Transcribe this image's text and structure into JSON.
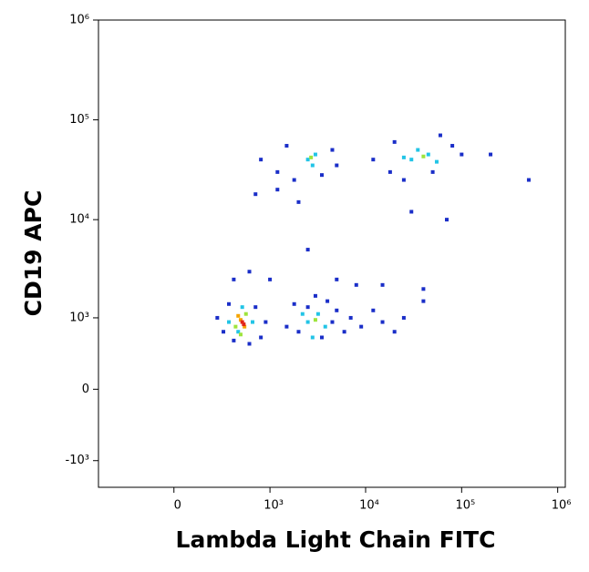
{
  "chart_data": {
    "type": "scatter",
    "x_label": "Lambda Light Chain FITC",
    "y_label": "CD19 APC",
    "scale": "biexponential",
    "xlim": [
      -600,
      1200000
    ],
    "ylim": [
      -1900,
      1000000
    ],
    "xticks": [
      0,
      {
        "value": 1000,
        "label": "10³"
      },
      {
        "value": 10000,
        "label": "10⁴"
      },
      {
        "value": 100000,
        "label": "10⁵"
      },
      {
        "value": 1000000,
        "label": "10⁶"
      }
    ],
    "yticks": [
      {
        "value": -1000,
        "label": "-10³"
      },
      0,
      {
        "value": 1000,
        "label": "10³"
      },
      {
        "value": 10000,
        "label": "10⁴"
      },
      {
        "value": 100000,
        "label": "10⁵"
      },
      {
        "value": 1000000,
        "label": "10⁶"
      }
    ],
    "series": [
      {
        "color": "#1a2ec8",
        "x": [
          300,
          250,
          350,
          700,
          800,
          600,
          400,
          900,
          1500,
          2000,
          2500,
          3500,
          4500,
          5000,
          6000,
          7000,
          1800,
          3000,
          4000,
          9000,
          15000,
          20000,
          25000,
          12000,
          1200,
          1800,
          3500,
          4500,
          800,
          1500,
          5000,
          12000,
          18000,
          25000,
          50000,
          80000,
          100000,
          60000,
          20000,
          200000,
          500000,
          1200,
          2000,
          700,
          30000,
          70000,
          2500,
          400,
          600,
          1000,
          5000,
          8000,
          15000,
          40000,
          40000
        ],
        "y": [
          700,
          1000,
          1400,
          1300,
          600,
          500,
          550,
          900,
          800,
          700,
          1300,
          600,
          900,
          1200,
          700,
          1000,
          1400,
          1700,
          1500,
          800,
          900,
          700,
          1000,
          1200,
          30000,
          25000,
          28000,
          50000,
          40000,
          55000,
          35000,
          40000,
          30000,
          25000,
          30000,
          55000,
          45000,
          70000,
          60000,
          45000,
          25000,
          20000,
          15000,
          18000,
          12000,
          10000,
          5000,
          2500,
          3000,
          2500,
          2500,
          2200,
          2200,
          1500,
          2000
        ]
      },
      {
        "color": "#22c4e6",
        "x": [
          450,
          500,
          350,
          650,
          2500,
          3200,
          3800,
          2800,
          2200,
          2500,
          3000,
          2800,
          30000,
          45000,
          35000,
          55000,
          25000
        ],
        "y": [
          700,
          1300,
          900,
          900,
          900,
          1100,
          800,
          600,
          1100,
          40000,
          45000,
          35000,
          40000,
          45000,
          50000,
          38000,
          42000
        ]
      },
      {
        "color": "#9ee43c",
        "x": [
          420,
          550,
          480,
          3000,
          2700,
          40000
        ],
        "y": [
          800,
          1100,
          650,
          950,
          42000,
          43000
        ]
      },
      {
        "color": "#f5a400",
        "x": [
          480,
          530,
          450
        ],
        "y": [
          950,
          800,
          1050
        ]
      },
      {
        "color": "#e3261a",
        "x": [
          500,
          520
        ],
        "y": [
          900,
          850
        ]
      }
    ]
  }
}
